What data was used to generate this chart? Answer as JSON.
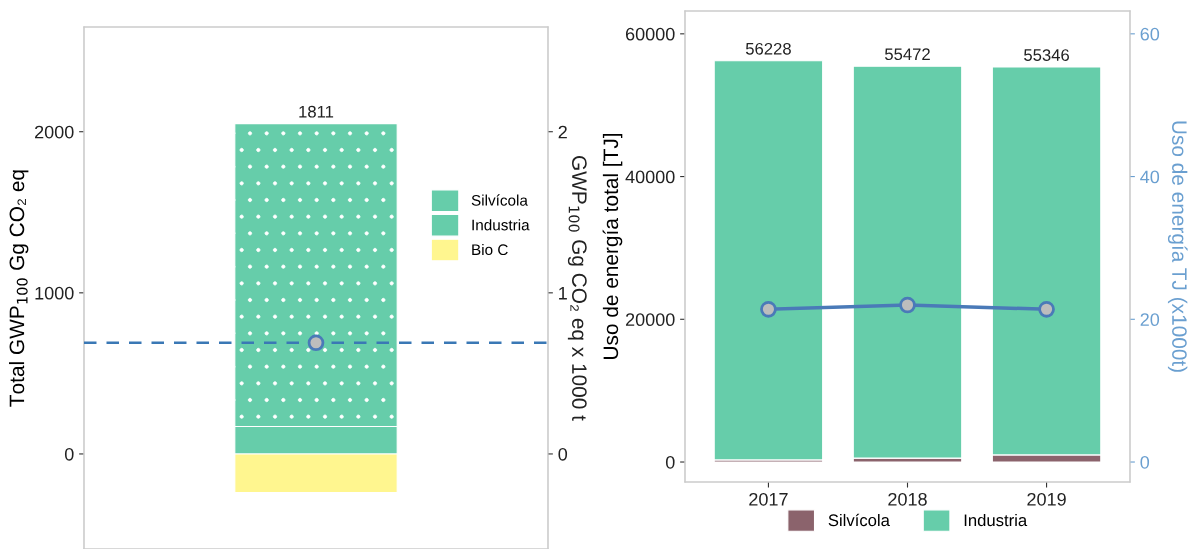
{
  "chart_data": [
    {
      "type": "bar",
      "stacked": true,
      "categories": [
        null
      ],
      "ylabel": "Total GWP$_{100}$ Gg CO₂ eq",
      "y2label": "GWP$_{100}$ Gg CO₂ eq x 1000 t",
      "ylim": [
        -590,
        2650
      ],
      "yticks": [
        0,
        1000,
        2000
      ],
      "y2lim": [
        -0.59,
        2.65
      ],
      "y2ticks": [
        0,
        1,
        2
      ],
      "tick_labels": "y",
      "series": [
        {
          "name": "Silvícola",
          "color": "#66cdaa",
          "values": [
            170
          ]
        },
        {
          "name": "Industria",
          "color": "#66cdaa",
          "values": [
            1880
          ]
        },
        {
          "name": "Bio C",
          "color": "#fff68f",
          "values": [
            -239
          ]
        },
        {
          "type": "scatter",
          "axis": "y2",
          "color": "#4a7ab8",
          "values": [
            0.69
          ]
        }
      ],
      "ref_lines": [
        {
          "axis": "y2",
          "value": 0.69,
          "color": "#3a78b5",
          "line_style": "dashed"
        }
      ],
      "totals": [
        "1811"
      ],
      "legend": "right",
      "marker": "circle"
    },
    {
      "type": "bar",
      "stacked": true,
      "categories": [
        "2017",
        "2018",
        "2019"
      ],
      "ylabel": "Uso de energía total [TJ]",
      "y2label": "Uso de energía TJ (x1000t)",
      "ylim": [
        -2800,
        63200
      ],
      "yticks": [
        0,
        20000,
        40000,
        60000
      ],
      "y2lim": [
        -2.8,
        63.2
      ],
      "y2ticks": [
        0,
        20,
        40,
        60
      ],
      "series": [
        {
          "name": "Silvícola",
          "color": "#8b636c",
          "values": [
            300,
            550,
            1000
          ]
        },
        {
          "name": "Industria",
          "color": "#66cdaa",
          "values": [
            55928,
            54922,
            54346
          ]
        },
        {
          "type": "line",
          "axis": "y2",
          "color": "#4a7ab8",
          "values": [
            21.4,
            22.0,
            21.4
          ]
        }
      ],
      "totals": [
        "56228",
        "55472",
        "55346"
      ],
      "legend": "bottom",
      "marker": "circle"
    }
  ]
}
